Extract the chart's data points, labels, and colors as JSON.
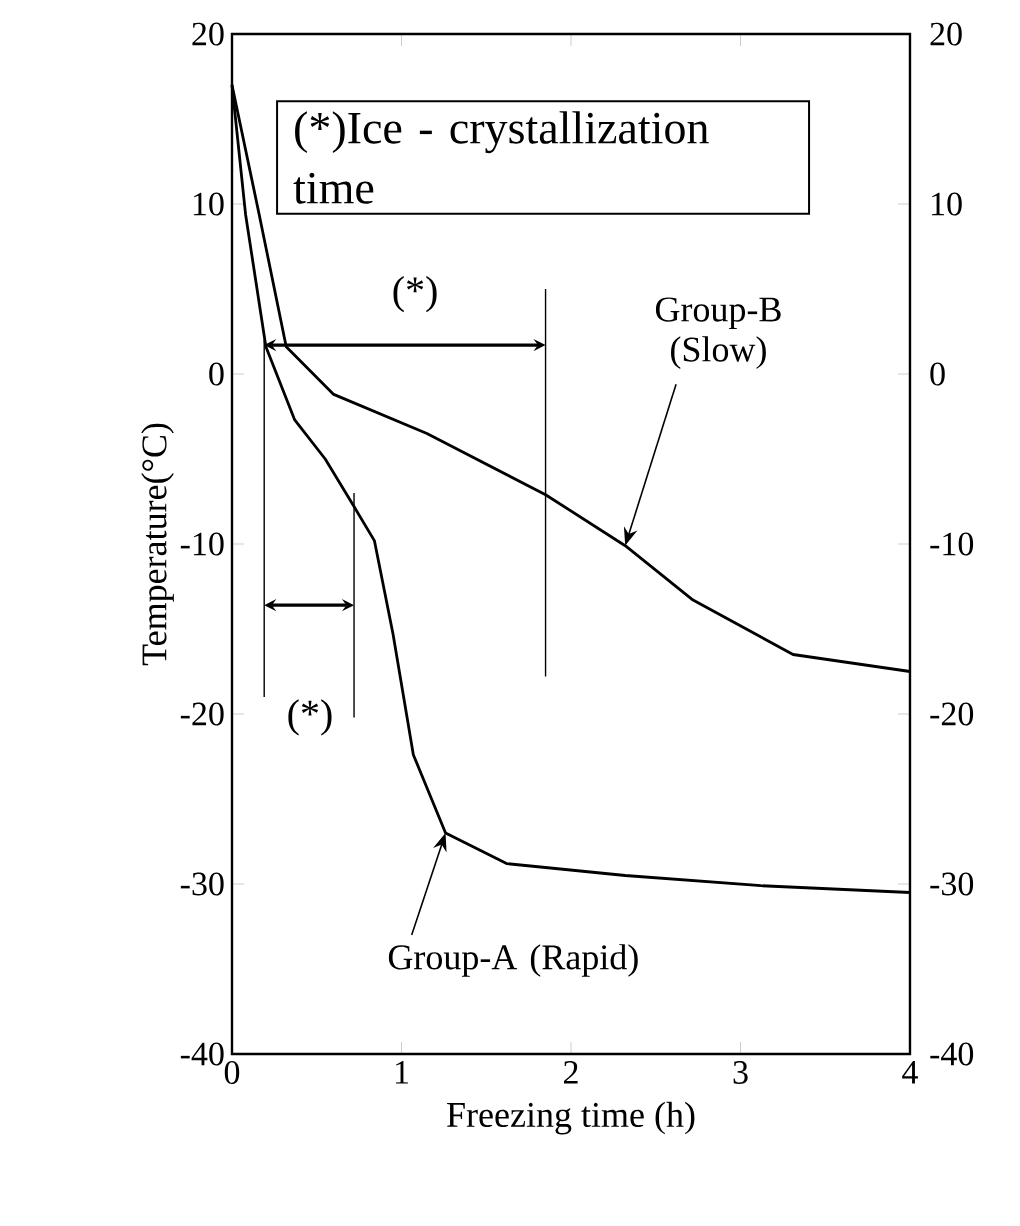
{
  "chart_data": {
    "type": "line",
    "xlabel": "Freezing time (h)",
    "ylabel": "Temperature(°C)",
    "xlim": [
      0,
      4
    ],
    "xticks": [
      0,
      1,
      2,
      3,
      4
    ],
    "ylim": [
      -40,
      20
    ],
    "yticks": [
      -40,
      -30,
      -20,
      -10,
      0,
      10,
      20
    ],
    "y2lim": [
      -40,
      20
    ],
    "y2ticks": [
      -40,
      -30,
      -20,
      -10,
      0,
      10,
      20
    ],
    "grid": false,
    "marker": "none",
    "line_style": "solid",
    "series": [
      {
        "color": "#000000",
        "x": [
          0,
          0.08,
          0.2,
          0.37,
          0.55,
          0.72,
          0.84,
          0.95,
          1.07,
          1.26,
          1.62,
          2.32,
          3.12,
          4
        ],
        "values": [
          17,
          9.4,
          1.6,
          -2.7,
          -5,
          -7.8,
          -9.8,
          -15.3,
          -22.4,
          -27,
          -28.8,
          -29.5,
          -30.1,
          -30.5
        ]
      },
      {
        "color": "#000000",
        "x": [
          0,
          0.16,
          0.32,
          0.6,
          1.15,
          1.85,
          2.32,
          2.72,
          3.31,
          4
        ],
        "values": [
          17,
          9.4,
          1.6,
          -1.2,
          -3.5,
          -7.1,
          -10.1,
          -13.3,
          -16.5,
          -17.5
        ]
      }
    ],
    "ref_lines": [
      {
        "axis": "x",
        "value": 0.19
      },
      {
        "axis": "x",
        "value": 0.72
      },
      {
        "axis": "x",
        "value": 1.85
      }
    ],
    "annotations": [
      "(*)Ice - crystallization time",
      "(*)",
      "(*)",
      {
        "text": "Group-B (Slow)",
        "x": 2.32,
        "y": -10.1
      },
      {
        "text": "Group-A (Rapid)",
        "x": 1.26,
        "y": -27
      }
    ]
  }
}
